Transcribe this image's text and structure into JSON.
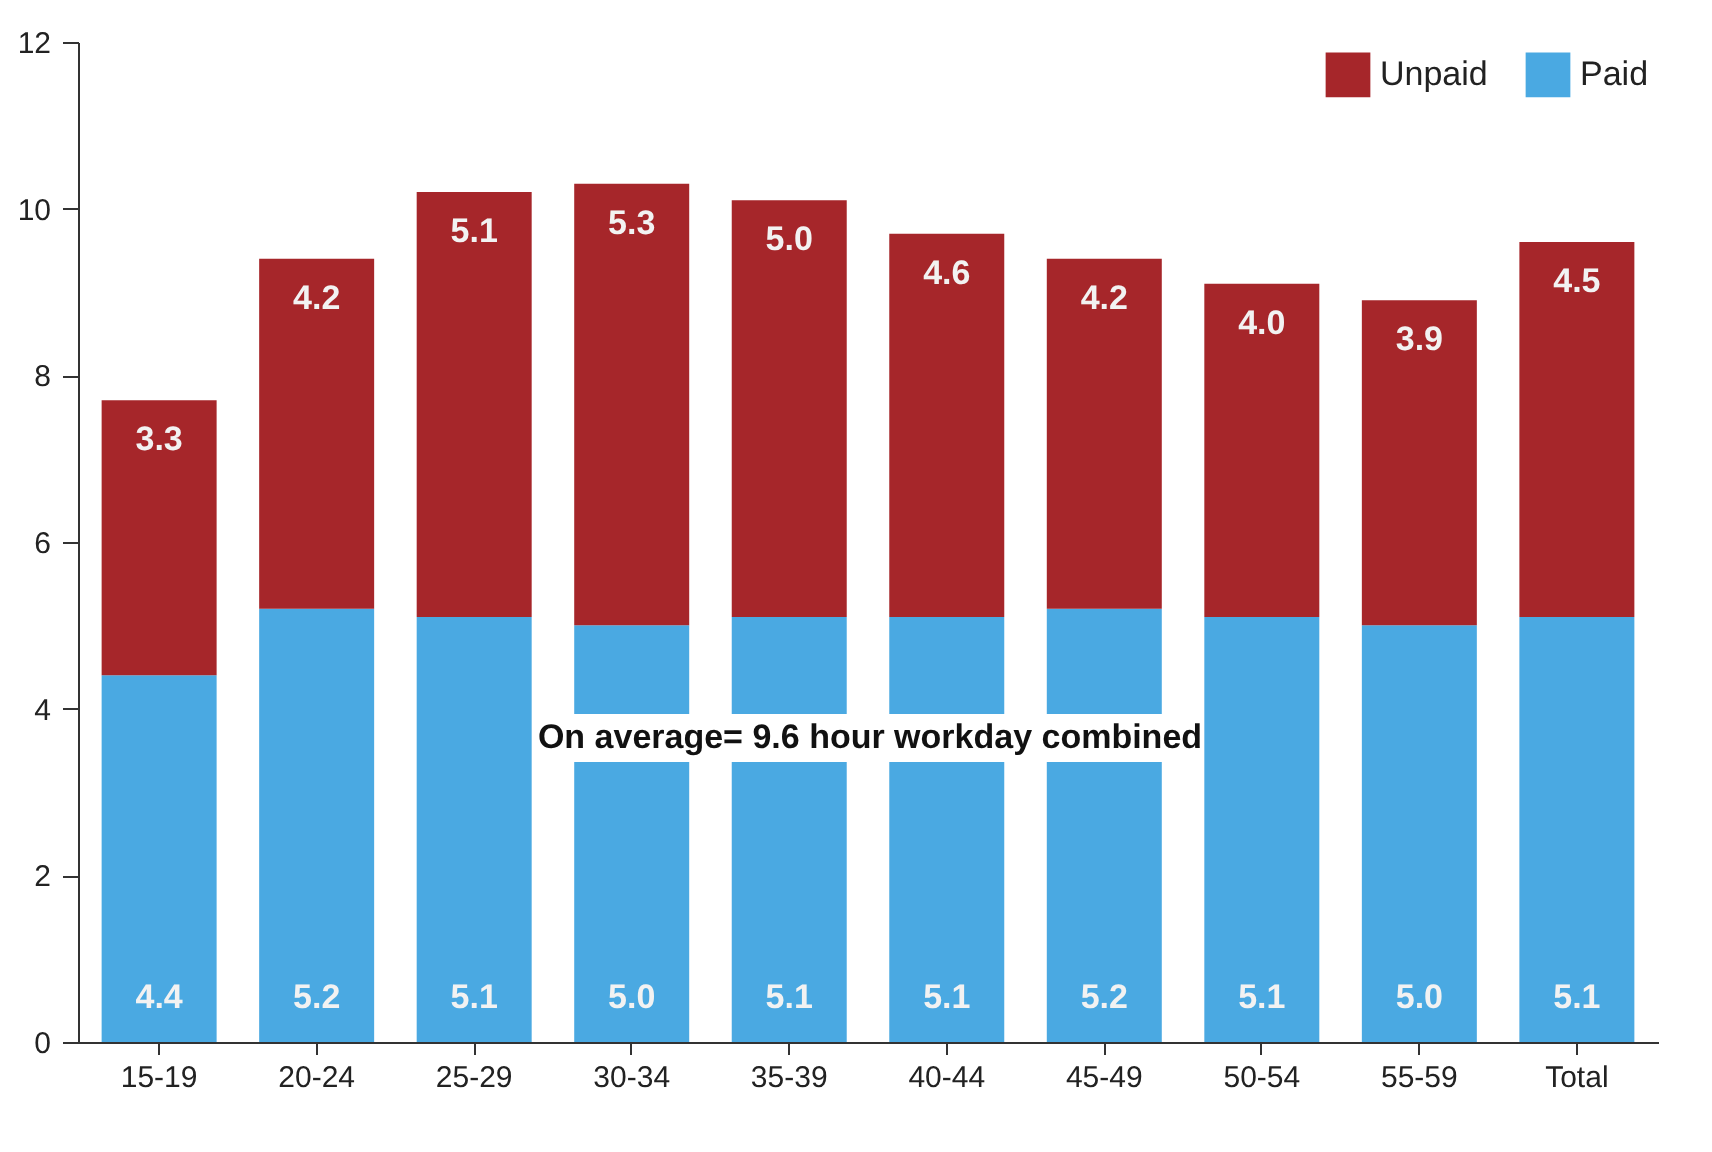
{
  "chart_data": {
    "type": "bar",
    "stacked": true,
    "categories": [
      "15-19",
      "20-24",
      "25-29",
      "30-34",
      "35-39",
      "40-44",
      "45-49",
      "50-54",
      "55-59",
      "Total"
    ],
    "series": [
      {
        "name": "Paid",
        "color": "#4aa9e2",
        "values": [
          4.4,
          5.2,
          5.1,
          5.0,
          5.1,
          5.1,
          5.2,
          5.1,
          5.0,
          5.1
        ],
        "value_labels": [
          "4.4",
          "5.2",
          "5.1",
          "5.0",
          "5.1",
          "5.1",
          "5.2",
          "5.1",
          "5.0",
          "5.1"
        ]
      },
      {
        "name": "Unpaid",
        "color": "#a6262a",
        "values": [
          3.3,
          4.2,
          5.1,
          5.3,
          5.0,
          4.6,
          4.2,
          4.0,
          3.9,
          4.5
        ],
        "value_labels": [
          "3.3",
          "4.2",
          "5.1",
          "5.3",
          "5.0",
          "4.6",
          "4.2",
          "4.0",
          "3.9",
          "4.5"
        ]
      }
    ],
    "ylim": [
      0,
      12
    ],
    "yticks": [
      0,
      2,
      4,
      6,
      8,
      10,
      12
    ],
    "grid": false,
    "legend": "top right",
    "annotations": [
      "On average=  9.6 hour workday combined"
    ]
  }
}
